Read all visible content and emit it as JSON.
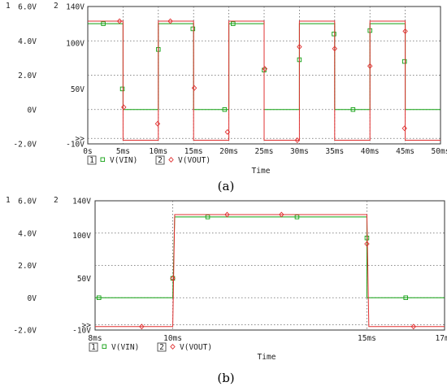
{
  "chart_data": [
    {
      "type": "line",
      "xlabel": "Time",
      "ylabel": "",
      "caption": "(a)",
      "x_unit": "ms",
      "xlim": [
        0,
        50
      ],
      "x_ticks": [
        "0s",
        "5ms",
        "10ms",
        "15ms",
        "20ms",
        "25ms",
        "30ms",
        "35ms",
        "40ms",
        "45ms",
        "50ms"
      ],
      "left_axis": {
        "number": "1",
        "ylim": [
          -2,
          6
        ],
        "ticks": [
          "6.0V",
          "4.0V",
          "2.0V",
          "0V",
          "-2.0V"
        ]
      },
      "right_axis": {
        "number": "2",
        "ylim": [
          -10,
          140
        ],
        "ticks": [
          "140V",
          "100V",
          "50V",
          ">>",
          "-10V"
        ]
      },
      "grid": true,
      "legend_position": "bottom-left",
      "series": [
        {
          "name": "V(VIN)",
          "axis": 1,
          "color": "#11a011",
          "marker": "square",
          "x": [
            0,
            5,
            5,
            10,
            10,
            15,
            15,
            20,
            20,
            25,
            25,
            30,
            30,
            35,
            35,
            40,
            40,
            45,
            45,
            50
          ],
          "y": [
            5,
            5,
            0,
            0,
            5,
            5,
            0,
            0,
            5,
            5,
            0,
            0,
            5,
            5,
            0,
            0,
            5,
            5,
            0,
            0
          ],
          "marker_x": [
            2.2,
            4.9,
            10.0,
            14.9,
            19.4,
            20.6,
            25.0,
            30.0,
            34.9,
            37.6,
            40.0,
            44.9
          ],
          "marker_y": [
            5.0,
            1.2,
            3.5,
            4.7,
            0.0,
            5.0,
            2.3,
            2.9,
            4.4,
            0.0,
            4.6,
            2.8
          ]
        },
        {
          "name": "V(VOUT)",
          "axis": 2,
          "color": "#e03030",
          "marker": "diamond",
          "x": [
            0,
            5,
            5,
            10,
            10,
            15,
            15,
            20,
            20,
            25,
            25,
            30,
            30,
            35,
            35,
            40,
            40,
            45,
            45,
            50
          ],
          "y": [
            124,
            124,
            -6,
            -6,
            124,
            124,
            -6,
            -6,
            124,
            124,
            -6,
            -6,
            124,
            124,
            -6,
            -6,
            124,
            124,
            -6,
            -6
          ],
          "marker_x": [
            4.5,
            5.1,
            9.9,
            11.7,
            15.1,
            19.8,
            25.1,
            29.7,
            30.0,
            35.0,
            40.0,
            44.9
          ],
          "marker_y": [
            124,
            30,
            12,
            124,
            51,
            3,
            72,
            -6,
            96,
            94,
            75,
            7
          ],
          "marker_x2": [
            45.0
          ],
          "marker_y2": [
            113
          ]
        }
      ]
    },
    {
      "type": "line",
      "xlabel": "Time",
      "ylabel": "",
      "caption": "(b)",
      "x_unit": "ms",
      "xlim": [
        8,
        17
      ],
      "x_ticks": [
        "8ms",
        "10ms",
        "15ms",
        "17ms"
      ],
      "x_tick_values": [
        8,
        10,
        15,
        17
      ],
      "left_axis": {
        "number": "1",
        "ylim": [
          -2,
          6
        ],
        "ticks": [
          "6.0V",
          "4.0V",
          "2.0V",
          "0V",
          "-2.0V"
        ]
      },
      "right_axis": {
        "number": "2",
        "ylim": [
          -10,
          140
        ],
        "ticks": [
          "140V",
          "100V",
          "50V",
          ">>",
          "-10V"
        ]
      },
      "grid": true,
      "legend_position": "bottom-left",
      "series": [
        {
          "name": "V(VIN)",
          "axis": 1,
          "color": "#11a011",
          "marker": "square",
          "x": [
            8,
            10,
            10.05,
            15,
            15,
            17
          ],
          "y": [
            0,
            0,
            5,
            5,
            0,
            0
          ],
          "marker_x": [
            8.1,
            10.0,
            10.9,
            13.2,
            15.0,
            16.0
          ],
          "marker_y": [
            0,
            1.2,
            5.0,
            5.0,
            3.7,
            0.0
          ]
        },
        {
          "name": "V(VOUT)",
          "axis": 2,
          "color": "#e03030",
          "marker": "diamond",
          "x": [
            8,
            10,
            10.05,
            15,
            15.05,
            17
          ],
          "y": [
            -6,
            -6,
            124,
            124,
            -6,
            -6
          ],
          "marker_x": [
            9.2,
            10.0,
            11.4,
            12.8,
            15.0,
            16.2
          ],
          "marker_y": [
            -6,
            50,
            124,
            124,
            90,
            -6
          ]
        }
      ]
    }
  ],
  "legend": {
    "items": [
      {
        "index": "1",
        "label": "V(VIN)"
      },
      {
        "index": "2",
        "label": "V(VOUT)"
      }
    ]
  }
}
